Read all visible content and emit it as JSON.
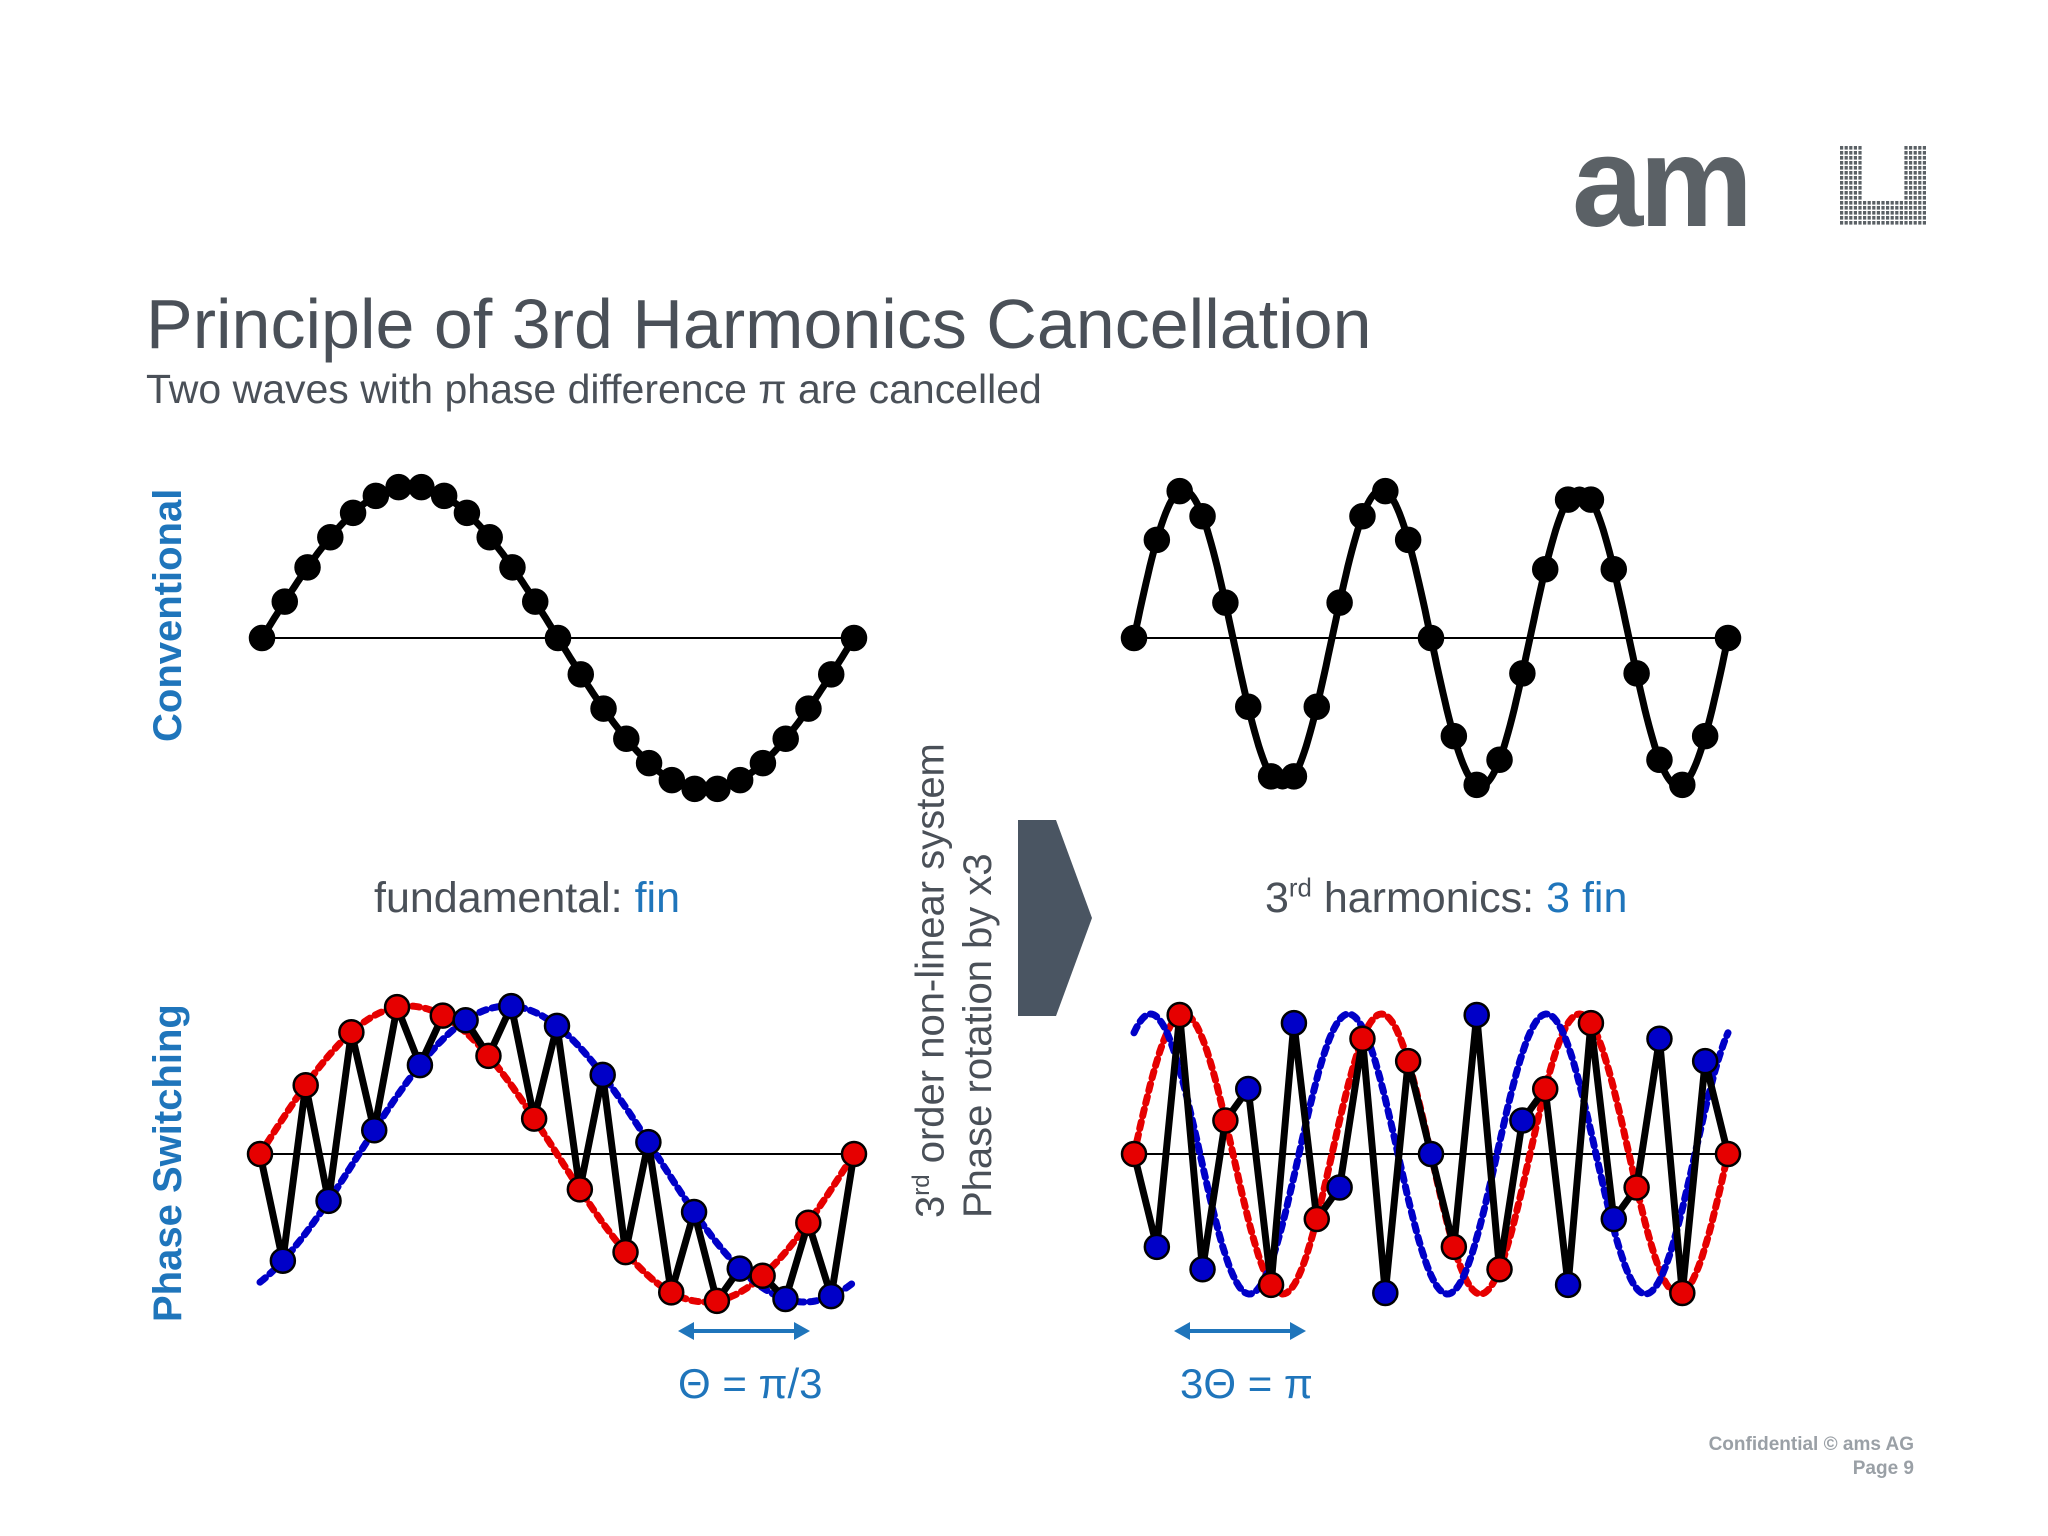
{
  "slide": {
    "title": "Principle of 3rd Harmonics Cancellation",
    "subtitle": "Two waves with phase difference π are cancelled",
    "row_label_top": "Conventional",
    "row_label_bottom": "Phase Switching",
    "fundamental_prefix": "fundamental: ",
    "fundamental_value": "fin",
    "harmonic_ordinal": "3",
    "harmonic_sup": "rd",
    "harmonic_prefix": " harmonics:  ",
    "harmonic_value": "3 fin",
    "system_line1_num": "3",
    "system_line1_sup": "rd",
    "system_line1_rest": " order non-linear system",
    "system_line2": "Phase rotation by x3",
    "theta_label": "Θ = π/3",
    "three_theta_label": "3Θ = π",
    "footer_line1": "Confidential © ams AG",
    "footer_line2": "Page 9",
    "logo_text": "am"
  },
  "colors": {
    "accent_blue": "#1f75bb",
    "red_dots": "#e60000",
    "blue_dots": "#0000c8",
    "arrow_gray": "#4a5562",
    "logo_gray": "#5b6166"
  },
  "diagram": {
    "fundamental_cycles": 1,
    "harmonic_cycles": 3,
    "samples_per_wave": 27,
    "phase_shift": "π/3",
    "harmonic_phase_shift": "π"
  }
}
